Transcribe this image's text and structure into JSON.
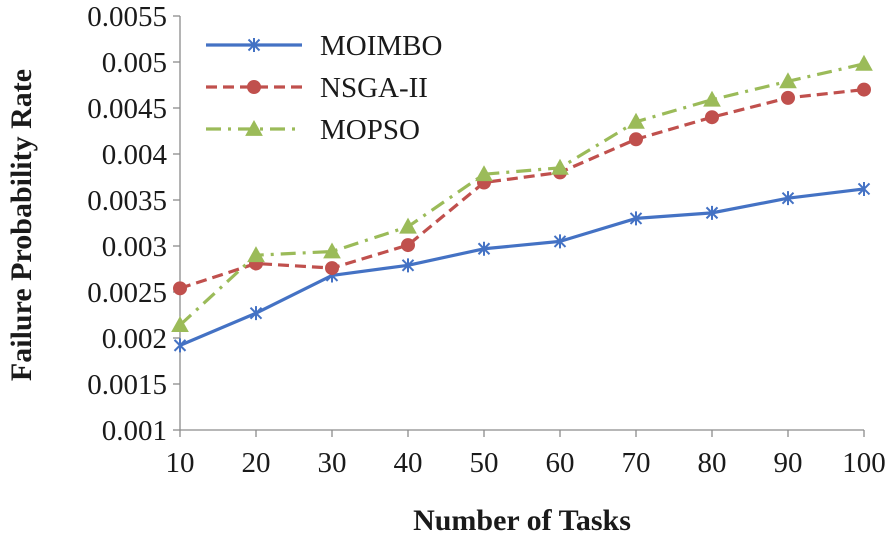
{
  "chart_data": {
    "type": "line",
    "title": "",
    "xlabel": "Number of Tasks",
    "ylabel": "Failure Probability Rate",
    "x": [
      10,
      20,
      30,
      40,
      50,
      60,
      70,
      80,
      90,
      100
    ],
    "x_tick_labels": [
      "10",
      "20",
      "30",
      "40",
      "50",
      "60",
      "70",
      "80",
      "90",
      "100"
    ],
    "ylim": [
      0.001,
      0.0055
    ],
    "y_ticks": [
      0.001,
      0.0015,
      0.002,
      0.0025,
      0.003,
      0.0035,
      0.004,
      0.0045,
      0.005,
      0.0055
    ],
    "y_tick_labels": [
      "0.001",
      "0.0015",
      "0.002",
      "0.0025",
      "0.003",
      "0.0035",
      "0.004",
      "0.0045",
      "0.005",
      "0.0055"
    ],
    "grid": false,
    "legend_position": "top-left",
    "series": [
      {
        "name": "MOIMBO",
        "color": "#4472c4",
        "marker": "asterisk",
        "line_style": "solid",
        "values": [
          0.00192,
          0.00227,
          0.00268,
          0.00279,
          0.00297,
          0.00305,
          0.0033,
          0.00336,
          0.00352,
          0.00362
        ]
      },
      {
        "name": "NSGA-II",
        "color": "#c0504d",
        "marker": "circle",
        "line_style": "dashed",
        "values": [
          0.00254,
          0.00281,
          0.00276,
          0.00301,
          0.00369,
          0.0038,
          0.00416,
          0.0044,
          0.00461,
          0.0047
        ]
      },
      {
        "name": "MOPSO",
        "color": "#9bbb59",
        "marker": "triangle",
        "line_style": "dash-dot",
        "values": [
          0.00214,
          0.0029,
          0.00294,
          0.00321,
          0.00378,
          0.00385,
          0.00435,
          0.00459,
          0.00479,
          0.00498
        ]
      }
    ]
  }
}
